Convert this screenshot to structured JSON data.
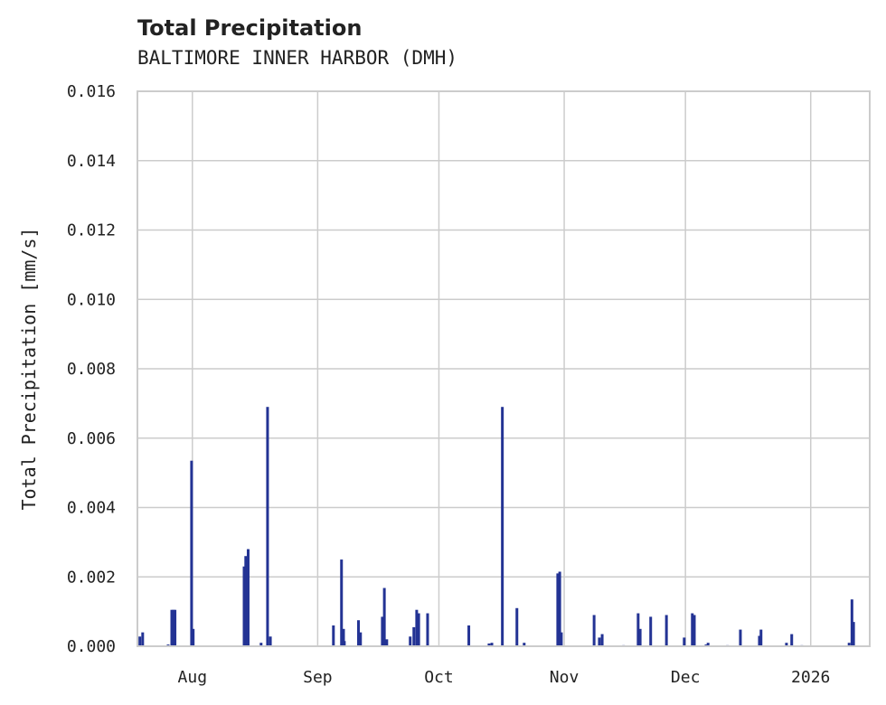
{
  "chart_data": {
    "type": "bar",
    "title": "Total Precipitation",
    "subtitle": "BALTIMORE INNER HARBOR (DMH)",
    "xlabel": "",
    "ylabel": "Total Precipitation [mm/s]",
    "x_unit": "days since 2025-08-01",
    "xlim": [
      -13.6,
      167.6
    ],
    "ylim": [
      0,
      0.016
    ],
    "grid": true,
    "color": "#233394",
    "y_ticks": [
      "0.000",
      "0.002",
      "0.004",
      "0.006",
      "0.008",
      "0.010",
      "0.012",
      "0.014",
      "0.016"
    ],
    "x_ticks": [
      {
        "label": "Aug",
        "x": 0
      },
      {
        "label": "Sep",
        "x": 31
      },
      {
        "label": "Oct",
        "x": 61
      },
      {
        "label": "Nov",
        "x": 92
      },
      {
        "label": "Dec",
        "x": 122
      },
      {
        "label": "2026",
        "x": 153
      }
    ],
    "points": [
      [
        -13.0,
        0.00028
      ],
      [
        -12.3,
        0.0004
      ],
      [
        -6.0,
        5e-05
      ],
      [
        -5.1,
        0.00105
      ],
      [
        -4.7,
        0.00105
      ],
      [
        -4.3,
        0.00105
      ],
      [
        -0.2,
        0.00535
      ],
      [
        0.2,
        0.0005
      ],
      [
        12.8,
        0.0023
      ],
      [
        13.2,
        0.0026
      ],
      [
        13.4,
        0.0004
      ],
      [
        13.8,
        0.0028
      ],
      [
        17.0,
        0.0001
      ],
      [
        18.6,
        0.0069
      ],
      [
        19.3,
        0.00028
      ],
      [
        34.9,
        0.0006
      ],
      [
        36.9,
        0.0025
      ],
      [
        37.4,
        0.0005
      ],
      [
        37.6,
        0.00015
      ],
      [
        41.1,
        0.00075
      ],
      [
        41.6,
        0.0004
      ],
      [
        47.0,
        0.00085
      ],
      [
        47.5,
        0.00168
      ],
      [
        48.1,
        0.0002
      ],
      [
        53.9,
        0.00028
      ],
      [
        54.8,
        0.00055
      ],
      [
        55.5,
        0.00105
      ],
      [
        56.0,
        0.00095
      ],
      [
        58.2,
        0.00095
      ],
      [
        68.4,
        0.0006
      ],
      [
        73.4,
        8e-05
      ],
      [
        74.1,
        0.0001
      ],
      [
        76.7,
        0.0069
      ],
      [
        80.3,
        0.0011
      ],
      [
        82.1,
        0.0001
      ],
      [
        90.4,
        0.0021
      ],
      [
        90.9,
        0.00215
      ],
      [
        91.3,
        0.0004
      ],
      [
        99.4,
        0.0009
      ],
      [
        100.7,
        0.00025
      ],
      [
        101.4,
        0.00035
      ],
      [
        106.7,
        3e-05
      ],
      [
        110.3,
        0.00095
      ],
      [
        110.8,
        0.0005
      ],
      [
        113.4,
        0.00085
      ],
      [
        117.3,
        0.0009
      ],
      [
        121.7,
        0.00025
      ],
      [
        123.7,
        0.00095
      ],
      [
        124.2,
        0.0009
      ],
      [
        127.1,
        5e-05
      ],
      [
        127.6,
        0.0001
      ],
      [
        132.4,
        3e-05
      ],
      [
        135.6,
        0.00048
      ],
      [
        140.3,
        0.0003
      ],
      [
        140.7,
        0.00048
      ],
      [
        147.0,
        0.0001
      ],
      [
        148.3,
        0.00035
      ],
      [
        150.8,
        3e-05
      ],
      [
        162.5,
        0.0001
      ],
      [
        163.2,
        0.00135
      ],
      [
        163.6,
        0.0007
      ]
    ]
  }
}
